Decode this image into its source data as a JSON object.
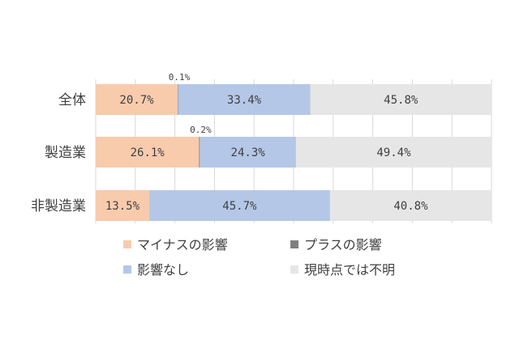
{
  "chart_data": {
    "type": "bar",
    "orientation": "horizontal",
    "stacked": true,
    "percent_stacked": true,
    "categories": [
      "全体",
      "製造業",
      "非製造業"
    ],
    "series": [
      {
        "name": "マイナスの影響",
        "color": "#F8CBAD",
        "values": [
          20.7,
          26.1,
          13.5
        ]
      },
      {
        "name": "プラスの影響",
        "color": "#7F7F7F",
        "values": [
          0.1,
          0.2,
          0.0
        ]
      },
      {
        "name": "影響なし",
        "color": "#B4C7E7",
        "values": [
          33.4,
          24.3,
          45.7
        ]
      },
      {
        "name": "現時点では不明",
        "color": "#E7E6E6",
        "values": [
          45.8,
          49.4,
          40.8
        ]
      }
    ],
    "data_labels": [
      [
        "20.7%",
        "0.1%",
        "33.4%",
        "45.8%"
      ],
      [
        "26.1%",
        "0.2%",
        "24.3%",
        "49.4%"
      ],
      [
        "13.5%",
        "",
        "45.7%",
        "40.8%"
      ]
    ],
    "xlim": [
      0,
      100
    ],
    "grid": true,
    "legend_position": "bottom",
    "title": "",
    "xlabel": "",
    "ylabel": ""
  }
}
